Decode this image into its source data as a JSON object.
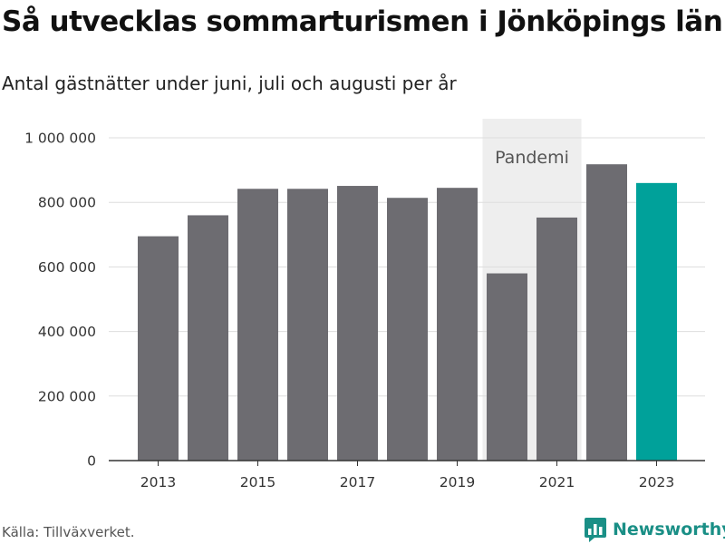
{
  "title": "Så utvecklas sommarturismen i Jönköpings län",
  "subtitle": "Antal gästnätter under juni, juli och augusti per år",
  "source": "Källa: Tillväxverket.",
  "brand": {
    "name": "Newsworthy",
    "icon": "newsworthy-logo-icon"
  },
  "colors": {
    "bar": "#6d6c71",
    "highlight": "#00a19a",
    "shade": "#eeeeee",
    "grid": "#dddddd",
    "axis": "#333333",
    "brand": "#1a8f86"
  },
  "chart_data": {
    "type": "bar",
    "title": "Så utvecklas sommarturismen i Jönköpings län",
    "subtitle": "Antal gästnätter under juni, juli och augusti per år",
    "xlabel": "",
    "ylabel": "",
    "categories": [
      2013,
      2014,
      2015,
      2016,
      2017,
      2018,
      2019,
      2020,
      2021,
      2022,
      2023
    ],
    "values": [
      695000,
      760000,
      842000,
      842000,
      851000,
      814000,
      845000,
      580000,
      753000,
      918000,
      860000
    ],
    "highlight_category": 2023,
    "ylim": [
      0,
      1000000
    ],
    "y_ticks": [
      {
        "value": 0,
        "label": "0"
      },
      {
        "value": 200000,
        "label": "200 000"
      },
      {
        "value": 400000,
        "label": "400 000"
      },
      {
        "value": 600000,
        "label": "600 000"
      },
      {
        "value": 800000,
        "label": "800 000"
      },
      {
        "value": 1000000,
        "label": "1 000 000"
      }
    ],
    "x_ticks": [
      {
        "value": 2013,
        "label": "2013"
      },
      {
        "value": 2015,
        "label": "2015"
      },
      {
        "value": 2017,
        "label": "2017"
      },
      {
        "value": 2019,
        "label": "2019"
      },
      {
        "value": 2021,
        "label": "2021"
      },
      {
        "value": 2023,
        "label": "2023"
      }
    ],
    "shaded_region": {
      "from": 2020,
      "to": 2021,
      "label": "Pandemi"
    },
    "grid": true,
    "legend": "none"
  }
}
